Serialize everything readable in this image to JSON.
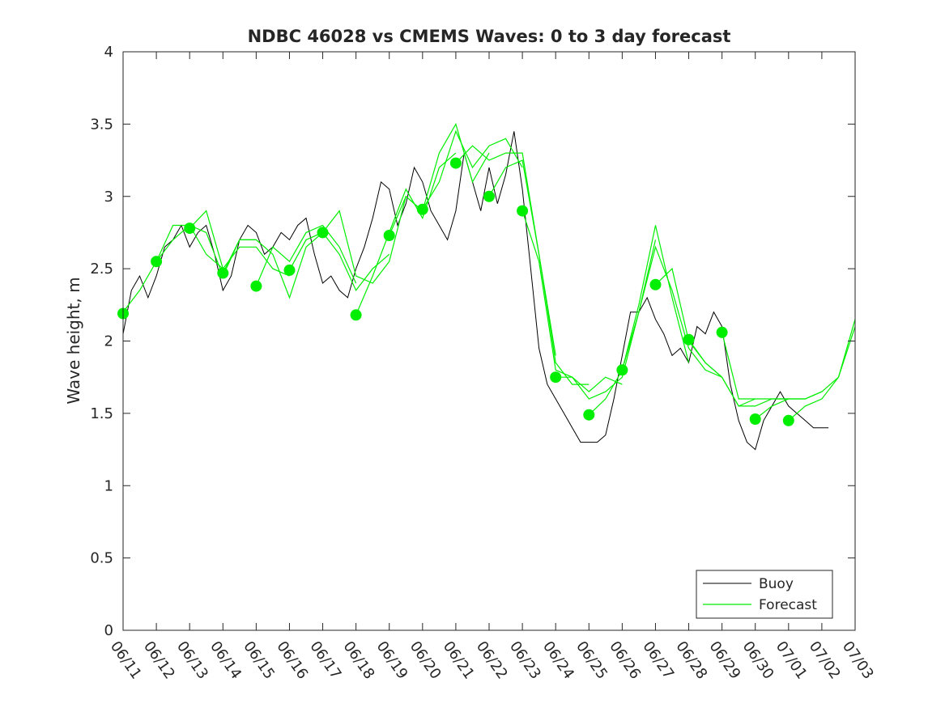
{
  "chart_data": {
    "type": "line",
    "title": "NDBC 46028 vs CMEMS Waves: 0 to 3 day forecast",
    "xlabel": "",
    "ylabel": "Wave height, m",
    "ylim": [
      0,
      4
    ],
    "yticks": [
      "0",
      "0.5",
      "1",
      "1.5",
      "2",
      "2.5",
      "3",
      "3.5",
      "4"
    ],
    "xlim_days": [
      0,
      22
    ],
    "xticks": [
      "06/11",
      "06/12",
      "06/13",
      "06/14",
      "06/15",
      "06/16",
      "06/17",
      "06/18",
      "06/19",
      "06/20",
      "06/21",
      "06/22",
      "06/23",
      "06/24",
      "06/25",
      "06/26",
      "06/27",
      "06/28",
      "06/29",
      "06/30",
      "07/01",
      "07/02",
      "07/03"
    ],
    "grid": false,
    "legend_position": "bottom-right",
    "colors": {
      "buoy": "#000000",
      "forecast": "#00ee00",
      "axes": "#262626"
    },
    "series": [
      {
        "name": "Buoy",
        "style": "thin black line",
        "x": [
          0.0,
          0.25,
          0.5,
          0.75,
          1.0,
          1.25,
          1.5,
          1.75,
          2.0,
          2.25,
          2.5,
          2.75,
          3.0,
          3.25,
          3.5,
          3.75,
          4.0,
          4.25,
          4.5,
          4.75,
          5.0,
          5.25,
          5.5,
          5.75,
          6.0,
          6.25,
          6.5,
          6.75,
          7.0,
          7.25,
          7.5,
          7.75,
          8.0,
          8.25,
          8.5,
          8.75,
          9.0,
          9.25,
          9.5,
          9.75,
          10.0,
          10.25,
          10.5,
          10.75,
          11.0,
          11.25,
          11.5,
          11.75,
          12.0,
          12.25,
          12.5,
          12.75,
          13.0,
          13.25,
          13.5,
          13.75,
          14.0,
          14.25,
          14.5,
          14.75,
          15.0,
          15.25,
          15.5,
          15.75,
          16.0,
          16.25,
          16.5,
          16.75,
          17.0,
          17.25,
          17.5,
          17.75,
          18.0,
          18.25,
          18.5,
          18.75,
          19.0,
          19.25,
          19.5,
          19.75,
          20.0,
          20.25,
          20.5,
          20.75,
          21.0,
          21.2
        ],
        "values": [
          2.05,
          2.35,
          2.45,
          2.3,
          2.45,
          2.65,
          2.7,
          2.8,
          2.65,
          2.75,
          2.8,
          2.6,
          2.35,
          2.45,
          2.7,
          2.8,
          2.75,
          2.6,
          2.65,
          2.75,
          2.7,
          2.8,
          2.85,
          2.6,
          2.4,
          2.45,
          2.35,
          2.3,
          2.5,
          2.65,
          2.85,
          3.1,
          3.05,
          2.8,
          2.95,
          3.2,
          3.1,
          2.9,
          2.8,
          2.7,
          2.9,
          3.3,
          3.1,
          2.9,
          3.2,
          2.95,
          3.15,
          3.45,
          3.05,
          2.5,
          1.95,
          1.7,
          1.6,
          1.5,
          1.4,
          1.3,
          1.3,
          1.3,
          1.35,
          1.6,
          1.9,
          2.2,
          2.2,
          2.3,
          2.15,
          2.05,
          1.9,
          1.95,
          1.85,
          2.1,
          2.05,
          2.2,
          2.1,
          1.7,
          1.45,
          1.3,
          1.25,
          1.45,
          1.55,
          1.65,
          1.55,
          1.5,
          1.45,
          1.4,
          1.4,
          1.4
        ]
      },
      {
        "name": "Forecast",
        "style": "green lines (multiple forecast runs) with filled markers at each forecast start",
        "runs": [
          {
            "x": [
              0.0,
              0.5,
              1.0,
              1.5,
              2.0,
              2.5,
              3.0
            ],
            "values": [
              2.2,
              2.35,
              2.55,
              2.7,
              2.8,
              2.6,
              2.5
            ]
          },
          {
            "x": [
              1.0,
              1.5,
              2.0,
              2.5,
              3.0,
              3.5,
              4.0
            ],
            "values": [
              2.55,
              2.8,
              2.8,
              2.75,
              2.45,
              2.7,
              2.7
            ]
          },
          {
            "x": [
              2.0,
              2.5,
              3.0,
              3.5,
              4.0,
              4.5,
              5.0
            ],
            "values": [
              2.78,
              2.9,
              2.5,
              2.65,
              2.65,
              2.5,
              2.45
            ]
          },
          {
            "x": [
              3.0,
              3.5,
              4.0,
              4.5,
              5.0,
              5.5,
              6.0
            ],
            "values": [
              2.47,
              2.7,
              2.7,
              2.6,
              2.3,
              2.65,
              2.75
            ]
          },
          {
            "x": [
              4.0,
              4.5,
              5.0,
              5.5,
              6.0,
              6.5,
              7.0
            ],
            "values": [
              2.38,
              2.65,
              2.55,
              2.75,
              2.8,
              2.65,
              2.4
            ]
          },
          {
            "x": [
              5.0,
              5.5,
              6.0,
              6.5,
              7.0,
              7.5,
              8.0
            ],
            "values": [
              2.49,
              2.7,
              2.75,
              2.6,
              2.35,
              2.5,
              2.6
            ]
          },
          {
            "x": [
              6.0,
              6.5,
              7.0,
              7.5,
              8.0,
              8.5,
              9.0
            ],
            "values": [
              2.75,
              2.9,
              2.45,
              2.4,
              2.55,
              3.0,
              2.9
            ]
          },
          {
            "x": [
              7.0,
              7.5,
              8.0,
              8.5,
              9.0,
              9.5,
              10.0
            ],
            "values": [
              2.18,
              2.45,
              2.75,
              3.05,
              2.85,
              3.2,
              3.3
            ]
          },
          {
            "x": [
              8.0,
              8.5,
              9.0,
              9.5,
              10.0,
              10.5,
              11.0
            ],
            "values": [
              2.73,
              3.0,
              2.9,
              3.3,
              3.5,
              3.1,
              3.3
            ]
          },
          {
            "x": [
              9.0,
              9.5,
              10.0,
              10.5,
              11.0,
              11.5,
              12.0
            ],
            "values": [
              2.91,
              3.1,
              3.45,
              3.2,
              3.35,
              3.4,
              3.2
            ]
          },
          {
            "x": [
              10.0,
              10.5,
              11.0,
              11.5,
              12.0,
              12.5,
              13.0
            ],
            "values": [
              3.23,
              3.35,
              3.25,
              3.3,
              3.3,
              2.6,
              1.9
            ]
          },
          {
            "x": [
              11.0,
              11.5,
              12.0,
              12.5,
              13.0,
              13.5,
              14.0
            ],
            "values": [
              3.0,
              3.2,
              3.25,
              2.6,
              1.85,
              1.7,
              1.7
            ]
          },
          {
            "x": [
              12.0,
              12.5,
              13.0,
              13.5,
              14.0,
              14.5,
              15.0
            ],
            "values": [
              2.9,
              2.55,
              1.8,
              1.75,
              1.65,
              1.75,
              1.7
            ]
          },
          {
            "x": [
              13.0,
              13.5,
              14.0,
              14.5,
              15.0,
              15.5,
              16.0
            ],
            "values": [
              1.75,
              1.75,
              1.6,
              1.65,
              1.75,
              2.2,
              2.7
            ]
          },
          {
            "x": [
              14.0,
              14.5,
              15.0,
              15.5,
              16.0,
              16.5,
              17.0
            ],
            "values": [
              1.49,
              1.6,
              1.8,
              2.25,
              2.8,
              2.3,
              1.85
            ]
          },
          {
            "x": [
              15.0,
              15.5,
              16.0,
              16.5,
              17.0,
              17.5,
              18.0
            ],
            "values": [
              1.8,
              2.2,
              2.65,
              2.35,
              1.95,
              1.8,
              1.75
            ]
          },
          {
            "x": [
              16.0,
              16.5,
              17.0,
              17.5,
              18.0,
              18.5,
              19.0
            ],
            "values": [
              2.39,
              2.5,
              2.0,
              1.85,
              1.75,
              1.55,
              1.6
            ]
          },
          {
            "x": [
              17.0,
              17.5,
              18.0,
              18.5,
              19.0,
              19.5,
              20.0
            ],
            "values": [
              2.01,
              1.85,
              1.75,
              1.55,
              1.55,
              1.6,
              1.6
            ]
          },
          {
            "x": [
              18.0,
              18.5,
              19.0,
              19.5,
              20.0,
              20.5,
              21.0
            ],
            "values": [
              2.06,
              1.6,
              1.6,
              1.6,
              1.6,
              1.6,
              1.65
            ]
          },
          {
            "x": [
              19.0,
              19.5,
              20.0,
              20.5,
              21.0,
              21.5,
              22.0
            ],
            "values": [
              1.46,
              1.55,
              1.6,
              1.6,
              1.65,
              1.75,
              2.1
            ]
          },
          {
            "x": [
              20.0,
              20.5,
              21.0,
              21.5,
              22.0
            ],
            "values": [
              1.45,
              1.55,
              1.6,
              1.75,
              2.15
            ]
          }
        ],
        "marker_x": [
          0,
          1,
          2,
          3,
          4,
          5,
          6,
          7,
          8,
          9,
          10,
          11,
          12,
          13,
          14,
          15,
          16,
          17,
          18,
          19,
          20
        ],
        "marker_values": [
          2.19,
          2.55,
          2.78,
          2.47,
          2.38,
          2.49,
          2.75,
          2.18,
          2.73,
          2.91,
          3.23,
          3.0,
          2.9,
          1.75,
          1.49,
          1.8,
          2.39,
          2.01,
          2.06,
          1.46,
          1.45
        ]
      }
    ],
    "legend": [
      "Buoy",
      "Forecast"
    ]
  }
}
